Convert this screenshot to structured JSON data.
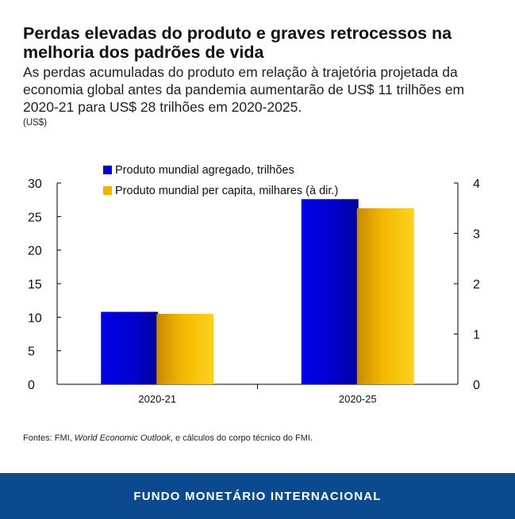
{
  "header": {
    "title": "Perdas elevadas do produto e graves retrocessos na melhoria dos padrões de vida",
    "subtitle": "As perdas acumuladas do produto em relação à trajetória projetada da economia global antes da pandemia aumentarão de US$ 11 trilhões em 2020-21 para US$ 28 trilhões em 2020-2025.",
    "unit": "(US$)"
  },
  "chart_data": {
    "type": "bar",
    "categories": [
      "2020-21",
      "2020-25"
    ],
    "series": [
      {
        "name": "Produto mundial agregado, trilhões",
        "axis": "left",
        "values": [
          10.8,
          27.6
        ],
        "color": "#0000cc"
      },
      {
        "name": "Produto mundial per capita, milhares (à dir.)",
        "axis": "right",
        "values": [
          1.4,
          3.5
        ],
        "color": "#f0b400"
      }
    ],
    "ylim_left": [
      0,
      30
    ],
    "yticks_left": [
      "0",
      "5",
      "10",
      "15",
      "20",
      "25",
      "30"
    ],
    "ylim_right": [
      0,
      4
    ],
    "yticks_right": [
      "0",
      "1",
      "2",
      "3",
      "4"
    ],
    "legend_position": "top-center",
    "grid": false
  },
  "source": {
    "prefix": "Fontes: FMI, ",
    "publication": "World Economic Outlook",
    "suffix": ", e cálculos do corpo técnico do FMI."
  },
  "footer": {
    "label": "FUNDO MONETÁRIO INTERNACIONAL"
  }
}
